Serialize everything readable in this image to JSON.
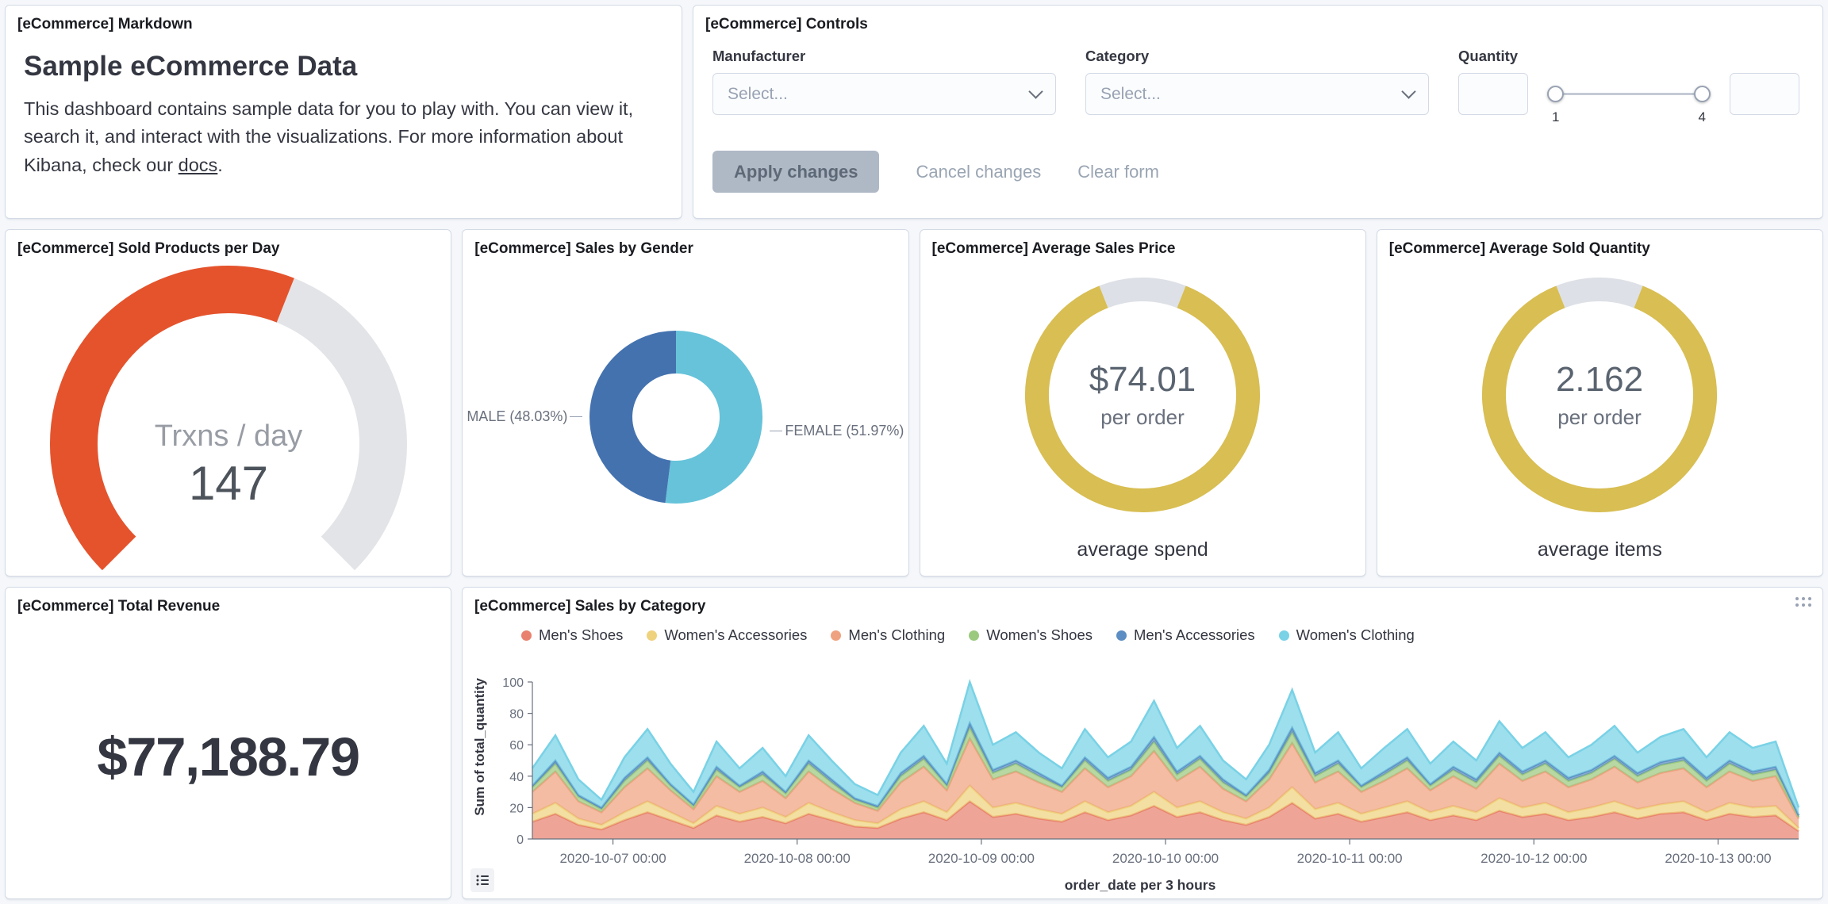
{
  "panels": {
    "markdown": {
      "title": "[eCommerce] Markdown",
      "heading": "Sample eCommerce Data",
      "body_before_link": "This dashboard contains sample data for you to play with. You can view it, search it, and interact with the visualizations. For more information about Kibana, check our ",
      "link_text": "docs",
      "body_after_link": "."
    },
    "controls": {
      "title": "[eCommerce] Controls",
      "manufacturer_label": "Manufacturer",
      "category_label": "Category",
      "quantity_label": "Quantity",
      "select_placeholder": "Select...",
      "quantity_min": "1",
      "quantity_max": "4",
      "apply_button": "Apply changes",
      "cancel_button": "Cancel changes",
      "clear_button": "Clear form"
    }
  },
  "chart_data": [
    {
      "type": "gauge",
      "title": "[eCommerce] Sold Products per Day",
      "label": "Trxns / day",
      "value": 147,
      "fraction": 0.58,
      "color": "#E5532C",
      "track_color": "#E3E4E8"
    },
    {
      "type": "pie",
      "title": "[eCommerce] Sales by Gender",
      "slices": [
        {
          "label": "MALE",
          "pct": 48.03,
          "display": "MALE (48.03%)",
          "color": "#4472AF"
        },
        {
          "label": "FEMALE",
          "pct": 51.97,
          "display": "FEMALE (51.97%)",
          "color": "#66C3DA"
        }
      ]
    },
    {
      "type": "goal",
      "title": "[eCommerce] Average Sales Price",
      "value": "$74.01",
      "sub": "per order",
      "caption": "average spend",
      "ring_fraction": 0.88,
      "color": "#D8BE53",
      "track_color": "#DDE0E6"
    },
    {
      "type": "goal",
      "title": "[eCommerce] Average Sold Quantity",
      "value": "2.162",
      "sub": "per order",
      "caption": "average items",
      "ring_fraction": 0.88,
      "color": "#D8BE53",
      "track_color": "#DDE0E6"
    },
    {
      "type": "metric",
      "title": "[eCommerce] Total Revenue",
      "value": "$77,188.79"
    },
    {
      "type": "area",
      "stacked": true,
      "title": "[eCommerce] Sales by Category",
      "xlabel": "order_date per 3 hours",
      "ylabel": "Sum of total_quantity",
      "ylim": [
        0,
        100
      ],
      "y_ticks": [
        0,
        20,
        40,
        60,
        80,
        100
      ],
      "x_tick_labels": [
        "2020-10-07 00:00",
        "2020-10-08 00:00",
        "2020-10-09 00:00",
        "2020-10-10 00:00",
        "2020-10-11 00:00",
        "2020-10-12 00:00",
        "2020-10-13 00:00"
      ],
      "x_tick_positions": [
        3.5,
        11.5,
        19.5,
        27.5,
        35.5,
        43.5,
        51.5
      ],
      "legend_position": "top",
      "series": [
        {
          "name": "Men's Shoes",
          "color": "#E8826F",
          "values": [
            11,
            16,
            9,
            6,
            12,
            17,
            12,
            7,
            15,
            11,
            14,
            10,
            16,
            12,
            8,
            7,
            13,
            17,
            12,
            24,
            14,
            16,
            13,
            11,
            17,
            12,
            15,
            21,
            14,
            17,
            12,
            9,
            14,
            23,
            13,
            16,
            11,
            14,
            17,
            12,
            15,
            12,
            18,
            14,
            16,
            12,
            14,
            17,
            13,
            16,
            17,
            12,
            16,
            14,
            15,
            5
          ]
        },
        {
          "name": "Women's Accessories",
          "color": "#EFD27D",
          "values": [
            5,
            7,
            4,
            3,
            5,
            7,
            5,
            3,
            6,
            5,
            6,
            4,
            7,
            5,
            4,
            3,
            6,
            7,
            5,
            10,
            6,
            7,
            6,
            5,
            7,
            5,
            6,
            9,
            6,
            7,
            5,
            4,
            6,
            10,
            6,
            7,
            5,
            6,
            7,
            5,
            6,
            5,
            8,
            6,
            7,
            5,
            6,
            7,
            6,
            6,
            7,
            5,
            7,
            6,
            6,
            2
          ]
        },
        {
          "name": "Men's Clothing",
          "color": "#EFA280",
          "values": [
            14,
            20,
            11,
            8,
            16,
            21,
            14,
            9,
            19,
            14,
            17,
            12,
            20,
            15,
            11,
            8,
            17,
            22,
            14,
            30,
            18,
            20,
            17,
            14,
            21,
            16,
            19,
            26,
            17,
            22,
            15,
            11,
            18,
            28,
            17,
            20,
            14,
            17,
            21,
            14,
            19,
            15,
            22,
            17,
            20,
            16,
            18,
            22,
            17,
            20,
            21,
            16,
            20,
            17,
            19,
            6
          ]
        },
        {
          "name": "Women's Shoes",
          "color": "#9BC97E",
          "values": [
            3,
            5,
            3,
            2,
            4,
            5,
            3,
            2,
            4,
            3,
            4,
            3,
            5,
            4,
            2,
            2,
            4,
            5,
            3,
            7,
            4,
            5,
            4,
            3,
            5,
            4,
            4,
            6,
            4,
            5,
            4,
            3,
            4,
            7,
            4,
            5,
            3,
            4,
            5,
            3,
            4,
            4,
            5,
            4,
            5,
            4,
            4,
            5,
            4,
            5,
            5,
            4,
            5,
            4,
            4,
            1
          ]
        },
        {
          "name": "Men's Accessories",
          "color": "#5C8EC3",
          "values": [
            1,
            2,
            1,
            1,
            2,
            2,
            1,
            1,
            2,
            1,
            2,
            1,
            2,
            2,
            1,
            1,
            2,
            2,
            1,
            3,
            2,
            2,
            2,
            1,
            2,
            2,
            2,
            3,
            2,
            2,
            2,
            1,
            2,
            3,
            2,
            2,
            1,
            2,
            2,
            1,
            2,
            2,
            2,
            2,
            2,
            2,
            2,
            2,
            2,
            2,
            2,
            2,
            2,
            2,
            2,
            1
          ]
        },
        {
          "name": "Women's Clothing",
          "color": "#79D2E6",
          "values": [
            11,
            16,
            10,
            5,
            13,
            18,
            13,
            8,
            16,
            11,
            15,
            10,
            16,
            12,
            9,
            7,
            13,
            19,
            13,
            26,
            16,
            18,
            13,
            11,
            18,
            13,
            16,
            23,
            15,
            19,
            12,
            10,
            16,
            24,
            13,
            18,
            11,
            15,
            18,
            13,
            16,
            12,
            20,
            15,
            18,
            13,
            16,
            19,
            13,
            16,
            18,
            13,
            18,
            15,
            16,
            5
          ]
        }
      ]
    }
  ]
}
